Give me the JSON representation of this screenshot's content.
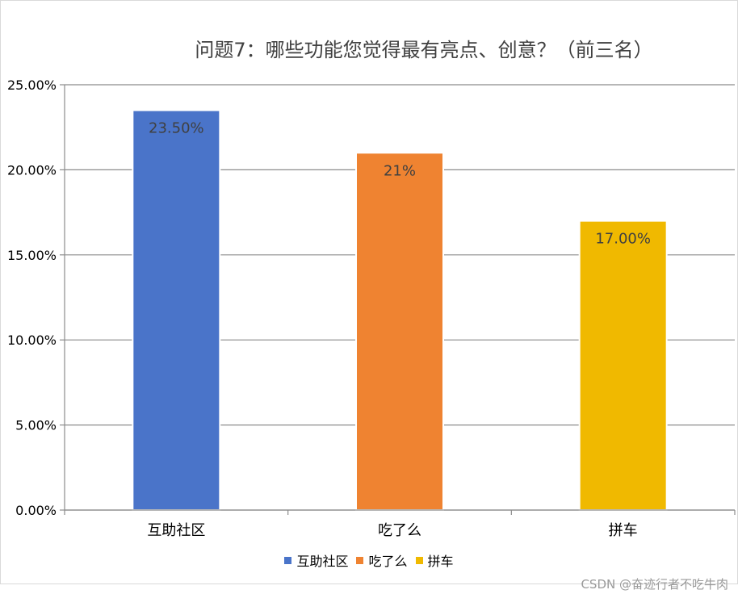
{
  "chart_data": {
    "type": "bar",
    "title": "问题7：哪些功能您觉得最有亮点、创意？（前三名）",
    "categories": [
      "互助社区",
      "吃了么",
      "拼车"
    ],
    "values": [
      23.5,
      21,
      17
    ],
    "data_labels": [
      "23.50%",
      "21%",
      "17.00%"
    ],
    "colors": [
      "#4a74c9",
      "#ef8331",
      "#f0b900"
    ],
    "ylim": [
      0,
      25
    ],
    "yticks": [
      "0.00%",
      "5.00%",
      "10.00%",
      "15.00%",
      "20.00%",
      "25.00%"
    ],
    "grid": true,
    "legend_position": "bottom"
  },
  "watermark": "CSDN @奋迹行者不吃牛肉"
}
